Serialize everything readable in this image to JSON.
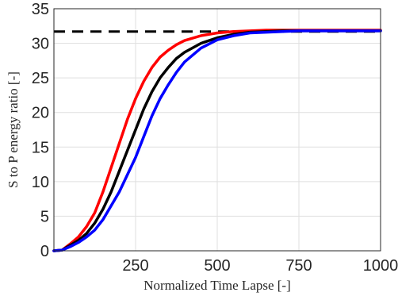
{
  "chart_data": {
    "type": "line",
    "title": "",
    "xlabel": "Normalized Time Lapse [-]",
    "ylabel": "S to P energy ratio [-]",
    "xlim": [
      0,
      1000
    ],
    "ylim": [
      0,
      35
    ],
    "xticks": [
      250,
      500,
      750,
      1000
    ],
    "yticks": [
      0,
      5,
      10,
      15,
      20,
      25,
      30,
      35
    ],
    "grid": true,
    "legend": "none",
    "reference_line": {
      "y": 31.7,
      "style": "dashed",
      "color": "#000000"
    },
    "series": [
      {
        "color": "#ff0000",
        "x": [
          0,
          25,
          50,
          75,
          100,
          125,
          150,
          175,
          200,
          225,
          250,
          275,
          300,
          325,
          350,
          375,
          400,
          450,
          500,
          550,
          600,
          650,
          700,
          750,
          800,
          850,
          900,
          950,
          1000
        ],
        "y": [
          0,
          0.1,
          1.0,
          2.0,
          3.5,
          5.5,
          8.5,
          12.0,
          15.5,
          19.0,
          22.0,
          24.5,
          26.5,
          28.0,
          29.0,
          29.8,
          30.4,
          31.1,
          31.5,
          31.7,
          31.8,
          31.9,
          31.9,
          31.9,
          31.9,
          31.9,
          31.9,
          31.9,
          31.9
        ]
      },
      {
        "color": "#000000",
        "x": [
          0,
          25,
          50,
          75,
          100,
          125,
          150,
          175,
          200,
          225,
          250,
          275,
          300,
          325,
          350,
          375,
          400,
          450,
          500,
          550,
          600,
          650,
          700,
          750,
          800,
          850,
          900,
          950,
          1000
        ],
        "y": [
          0,
          0.1,
          0.8,
          1.5,
          2.5,
          4.0,
          6.0,
          8.5,
          11.5,
          14.5,
          17.5,
          20.5,
          23.0,
          25.0,
          26.5,
          27.8,
          28.7,
          30.0,
          30.8,
          31.3,
          31.6,
          31.7,
          31.8,
          31.8,
          31.8,
          31.8,
          31.8,
          31.8,
          31.8
        ]
      },
      {
        "color": "#0000ff",
        "x": [
          0,
          25,
          50,
          75,
          100,
          125,
          150,
          175,
          200,
          225,
          250,
          275,
          300,
          325,
          350,
          375,
          400,
          450,
          500,
          550,
          600,
          650,
          700,
          750,
          800,
          850,
          900,
          950,
          1000
        ],
        "y": [
          0,
          0.1,
          0.6,
          1.2,
          2.0,
          3.0,
          4.5,
          6.5,
          8.5,
          11.0,
          13.5,
          16.5,
          19.5,
          22.0,
          24.0,
          25.8,
          27.3,
          29.3,
          30.5,
          31.1,
          31.5,
          31.6,
          31.7,
          31.8,
          31.8,
          31.8,
          31.8,
          31.8,
          31.8
        ]
      }
    ]
  }
}
